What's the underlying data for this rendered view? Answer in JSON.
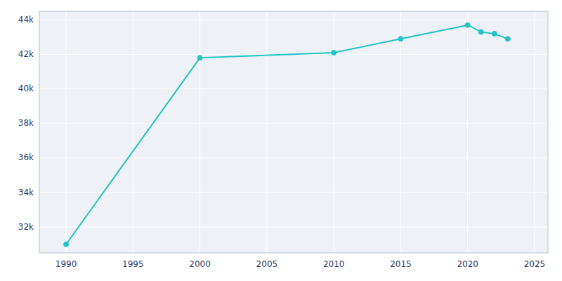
{
  "chart_data": {
    "type": "line",
    "x": [
      1990,
      2000,
      2010,
      2015,
      2020,
      2021,
      2022,
      2023
    ],
    "values": [
      31000,
      41800,
      42100,
      42900,
      43700,
      43300,
      43200,
      42900
    ],
    "color": "#22c4c4",
    "marker": "circle",
    "xlim": [
      1988,
      2026
    ],
    "ylim": [
      30500,
      44500
    ],
    "xticks": [
      1990,
      1995,
      2000,
      2005,
      2010,
      2015,
      2020,
      2025
    ],
    "yticks": [
      {
        "value": 32000,
        "label": "32k"
      },
      {
        "value": 34000,
        "label": "34k"
      },
      {
        "value": 36000,
        "label": "36k"
      },
      {
        "value": 38000,
        "label": "38k"
      },
      {
        "value": 40000,
        "label": "40k"
      },
      {
        "value": 42000,
        "label": "42k"
      },
      {
        "value": 44000,
        "label": "44k"
      }
    ],
    "grid": true
  }
}
